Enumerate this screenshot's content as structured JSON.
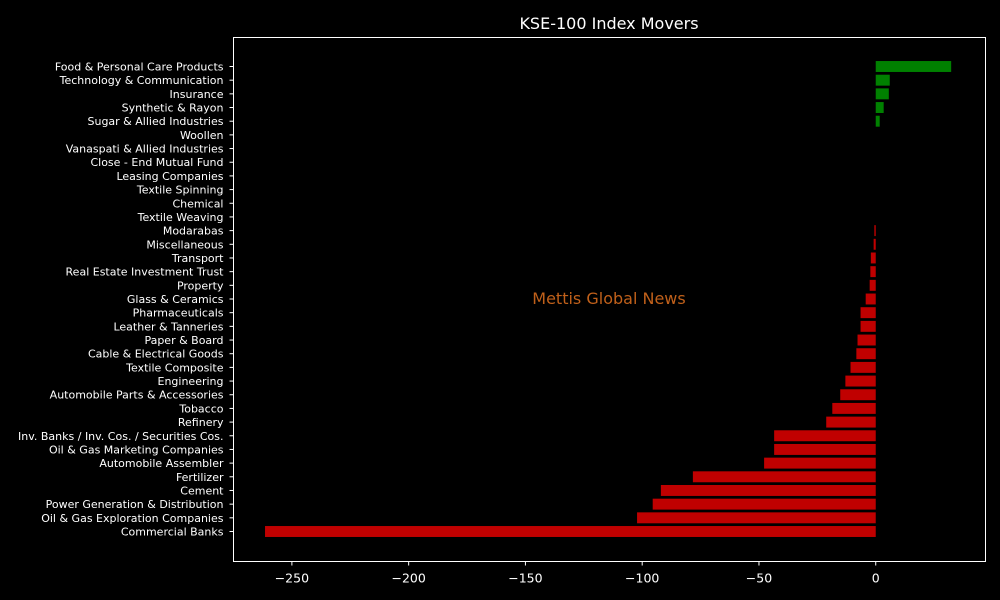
{
  "chart_data": {
    "type": "bar",
    "orientation": "horizontal",
    "title": "KSE-100 Index Movers",
    "xlabel": "",
    "ylabel": "",
    "xlim": [
      -275,
      47
    ],
    "xticks": [
      -250,
      -200,
      -150,
      -100,
      -50,
      0
    ],
    "xtick_labels": [
      "−250",
      "−200",
      "−150",
      "−100",
      "−50",
      "0"
    ],
    "grid": false,
    "watermark": "Mettis Global News",
    "colors": {
      "positive": "#008000",
      "negative": "#c00000",
      "background": "#000000",
      "text": "#ffffff",
      "watermark": "#c0601a"
    },
    "categories": [
      "Food & Personal Care Products",
      "Technology & Communication",
      "Insurance",
      "Synthetic & Rayon",
      "Sugar & Allied Industries",
      "Woollen",
      "Vanaspati & Allied Industries",
      "Close - End Mutual Fund",
      "Leasing Companies",
      "Textile Spinning",
      "Chemical",
      "Textile Weaving",
      "Modarabas",
      "Miscellaneous",
      "Transport",
      "Real Estate Investment Trust",
      "Property",
      "Glass & Ceramics",
      "Pharmaceuticals",
      "Leather & Tanneries",
      "Paper & Board",
      "Cable & Electrical Goods",
      "Textile Composite",
      "Engineering",
      "Automobile Parts & Accessories",
      "Tobacco",
      "Refinery",
      "Inv. Banks / Inv. Cos. / Securities Cos.",
      "Oil & Gas Marketing Companies",
      "Automobile Assembler",
      "Fertilizer",
      "Cement",
      "Power Generation & Distribution",
      "Oil & Gas Exploration Companies",
      "Commercial Banks"
    ],
    "values": [
      32.3,
      6.0,
      5.6,
      3.4,
      1.7,
      0,
      0,
      0,
      0,
      0,
      0,
      0,
      -0.6,
      -0.9,
      -2.1,
      -2.3,
      -2.6,
      -4.3,
      -6.5,
      -6.5,
      -7.8,
      -8.3,
      -10.8,
      -13.0,
      -15.2,
      -18.6,
      -21.2,
      -43.5,
      -43.5,
      -47.8,
      -78.3,
      -92.0,
      -95.5,
      -102.2,
      -261.5
    ]
  }
}
